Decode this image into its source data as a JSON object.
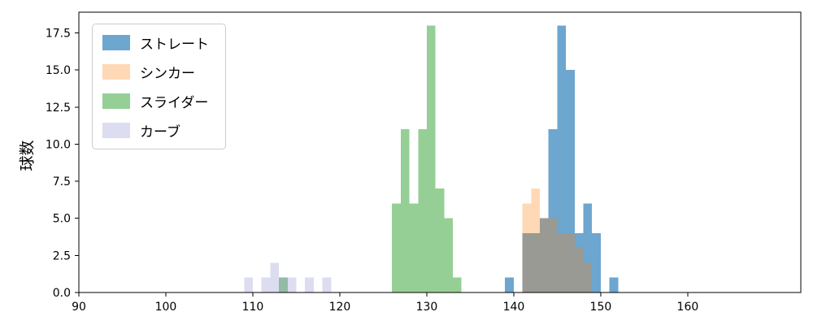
{
  "chart_data": {
    "type": "histogram",
    "title": "",
    "xlabel": "",
    "ylabel": "球数",
    "xlim": [
      90,
      173
    ],
    "ylim": [
      0,
      18.9
    ],
    "x_ticks": [
      90,
      100,
      110,
      120,
      130,
      140,
      150,
      160
    ],
    "y_tick_labels": [
      "0.0",
      "2.5",
      "5.0",
      "7.5",
      "10.0",
      "12.5",
      "15.0",
      "17.5"
    ],
    "bin_width": 1,
    "legend_position": "upper left",
    "grid": false,
    "series": [
      {
        "name": "ストレート",
        "color": "#1f77b4",
        "alpha": 0.65,
        "bins": [
          [
            139,
            1
          ],
          [
            141,
            4
          ],
          [
            142,
            4
          ],
          [
            143,
            5
          ],
          [
            144,
            11
          ],
          [
            145,
            18
          ],
          [
            146,
            15
          ],
          [
            147,
            4
          ],
          [
            148,
            6
          ],
          [
            149,
            4
          ],
          [
            151,
            1
          ]
        ]
      },
      {
        "name": "シンカー",
        "color": "#ff7f0e",
        "alpha": 0.3,
        "bins": [
          [
            141,
            6
          ],
          [
            142,
            7
          ],
          [
            143,
            5
          ],
          [
            144,
            5
          ],
          [
            145,
            4
          ],
          [
            146,
            4
          ],
          [
            147,
            3
          ],
          [
            148,
            2
          ]
        ]
      },
      {
        "name": "スライダー",
        "color": "#2ca02c",
        "alpha": 0.5,
        "bins": [
          [
            113,
            1
          ],
          [
            126,
            6
          ],
          [
            127,
            11
          ],
          [
            128,
            6
          ],
          [
            129,
            11
          ],
          [
            130,
            18
          ],
          [
            131,
            7
          ],
          [
            132,
            5
          ],
          [
            133,
            1
          ]
        ]
      },
      {
        "name": "カーブ",
        "color": "#8e8ed0",
        "alpha": 0.3,
        "bins": [
          [
            109,
            1
          ],
          [
            111,
            1
          ],
          [
            112,
            2
          ],
          [
            113,
            1
          ],
          [
            114,
            1
          ],
          [
            116,
            1
          ],
          [
            118,
            1
          ]
        ]
      }
    ]
  }
}
